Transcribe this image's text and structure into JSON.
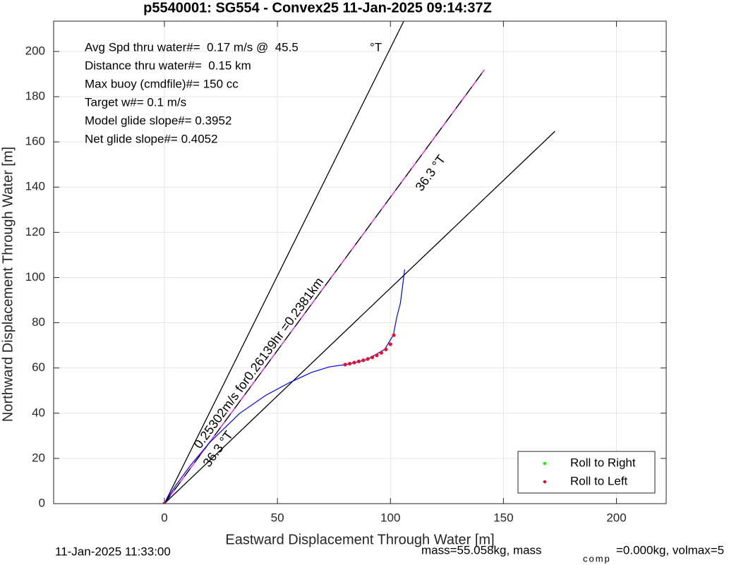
{
  "chart_data": {
    "type": "line",
    "title": "p5540001: SG554 - Convex25 11-Jan-2025 09:14:37Z",
    "x_label": "Eastward Displacement Through Water [m]",
    "y_label": "Northward Displacement Through Water [m]",
    "xlim": [
      -49,
      222
    ],
    "ylim": [
      0,
      213.4
    ],
    "xticks": [
      0,
      50,
      100,
      150,
      200
    ],
    "yticks": [
      0,
      20,
      40,
      60,
      80,
      100,
      120,
      140,
      160,
      180,
      200
    ],
    "grid": true,
    "legend": "lower right",
    "stats": [
      "Avg Spd thru water#=  0.17 m/s @  45.5",
      "Distance thru water#=  0.15 km",
      "Max buoy (cmdfile)#= 150 cc",
      "Target w#= 0.1 m/s",
      "Model glide slope#= 0.3952",
      "Net glide slope#= 0.4052"
    ],
    "stats_unit": "°T",
    "annotations": [
      {
        "text": "36.3 °T",
        "x": 118,
        "y": 146,
        "angle": -53.6
      },
      {
        "text": "36.3 °T",
        "x": 24,
        "y": 24,
        "angle": -53.6
      },
      {
        "text": "0.25302m/s for0.26139hr =0.2381km",
        "x": 42,
        "y": 62,
        "angle": -53.6
      }
    ],
    "reference_lines": [
      {
        "x": [
          0,
          105.9
        ],
        "y": [
          0,
          213.4
        ],
        "color": "#000000",
        "dashed": false
      },
      {
        "x": [
          0,
          141.6
        ],
        "y": [
          0,
          191.9
        ],
        "color": "#ff00ff",
        "dashed": false
      },
      {
        "x": [
          0,
          141.6
        ],
        "y": [
          0,
          191.9
        ],
        "color": "#000000",
        "dashed": true
      },
      {
        "x": [
          0,
          172.8
        ],
        "y": [
          0,
          164.7
        ],
        "color": "#000000",
        "dashed": false
      }
    ],
    "track": {
      "color": "#0000ff",
      "x": [
        0,
        5,
        11.6,
        20,
        33.4,
        45,
        55.3,
        65,
        73,
        80.3,
        89.7,
        97.5,
        101.3,
        102.8,
        104.4,
        105.6,
        106.3
      ],
      "y": [
        0,
        8,
        17,
        27,
        40,
        48,
        53.5,
        58,
        60.5,
        61.5,
        63.7,
        68.3,
        74.6,
        82.4,
        88.6,
        98,
        103.6
      ]
    },
    "series": [
      {
        "name": "Roll to Right",
        "color": "#00ff00",
        "x": [],
        "values": []
      },
      {
        "name": "Roll to Left",
        "color": "#e8102a",
        "x": [
          0,
          80,
          82,
          84,
          86,
          88,
          90,
          92,
          94,
          96,
          98,
          100,
          101.5
        ],
        "values": [
          0,
          61.5,
          61.9,
          62.4,
          62.9,
          63.4,
          64.0,
          64.7,
          65.6,
          66.7,
          68.2,
          70.5,
          74.5
        ]
      }
    ],
    "footer_left": "11-Jan-2025 11:33:00",
    "footer_mass": "mass=55.058kg, mass",
    "footer_sub": "comp",
    "footer_rest": "=0.000kg, volmax=5"
  }
}
